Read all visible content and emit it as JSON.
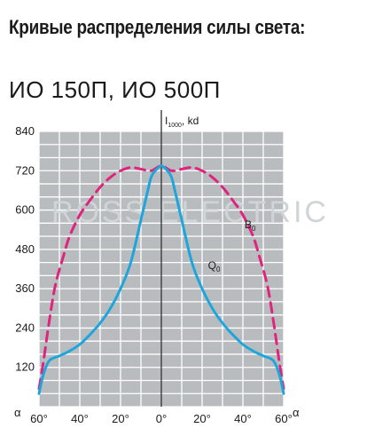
{
  "heading": "Кривые распределения силы света:",
  "subheading": "ИО 150П, ИО 500П",
  "watermark": "ROSS ELECTRIC",
  "colors": {
    "grid_bg": "#b9bcbf",
    "grid_line": "#ffffff",
    "series_B0": "#e0237c",
    "series_Q0": "#1ea6dc"
  },
  "chart_data": {
    "type": "line",
    "ylabel": {
      "main": "I",
      "sub": "1000",
      "unit": ", kd"
    },
    "x_axis_symbol": "α",
    "xlim": [
      -60,
      60
    ],
    "ylim": [
      0,
      840
    ],
    "x_ticks": [
      -60,
      -40,
      -20,
      0,
      20,
      40,
      60
    ],
    "x_tick_labels": [
      "60°",
      "40°",
      "20°",
      "0°",
      "20°",
      "40°",
      "60°"
    ],
    "y_ticks": [
      120,
      240,
      360,
      480,
      600,
      720,
      840
    ],
    "y_tick_labels": [
      "120",
      "240",
      "360",
      "480",
      "600",
      "720",
      "840"
    ],
    "grid": true,
    "series": [
      {
        "name": "B",
        "name_sub": "0",
        "style": "dashed",
        "x": [
          -60,
          -58,
          -55,
          -52,
          -48,
          -45,
          -40,
          -35,
          -30,
          -25,
          -20,
          -15,
          -10,
          -5,
          0,
          5,
          10,
          15,
          20,
          25,
          30,
          35,
          40,
          45,
          48,
          52,
          55,
          58,
          60
        ],
        "y": [
          55,
          130,
          260,
          370,
          460,
          520,
          585,
          630,
          670,
          700,
          720,
          730,
          725,
          720,
          735,
          720,
          725,
          730,
          720,
          700,
          670,
          630,
          585,
          520,
          460,
          370,
          260,
          130,
          55
        ]
      },
      {
        "name": "Q",
        "name_sub": "0",
        "style": "solid",
        "x": [
          -60,
          -58,
          -55,
          -50,
          -45,
          -40,
          -35,
          -30,
          -25,
          -20,
          -15,
          -10,
          -7,
          -5,
          -3,
          0,
          3,
          5,
          7,
          10,
          15,
          20,
          25,
          30,
          35,
          40,
          45,
          50,
          55,
          58,
          60
        ],
        "y": [
          40,
          95,
          140,
          155,
          170,
          190,
          220,
          255,
          300,
          360,
          440,
          570,
          650,
          700,
          720,
          735,
          720,
          700,
          650,
          570,
          440,
          360,
          300,
          255,
          220,
          190,
          170,
          155,
          140,
          95,
          40
        ]
      }
    ]
  }
}
